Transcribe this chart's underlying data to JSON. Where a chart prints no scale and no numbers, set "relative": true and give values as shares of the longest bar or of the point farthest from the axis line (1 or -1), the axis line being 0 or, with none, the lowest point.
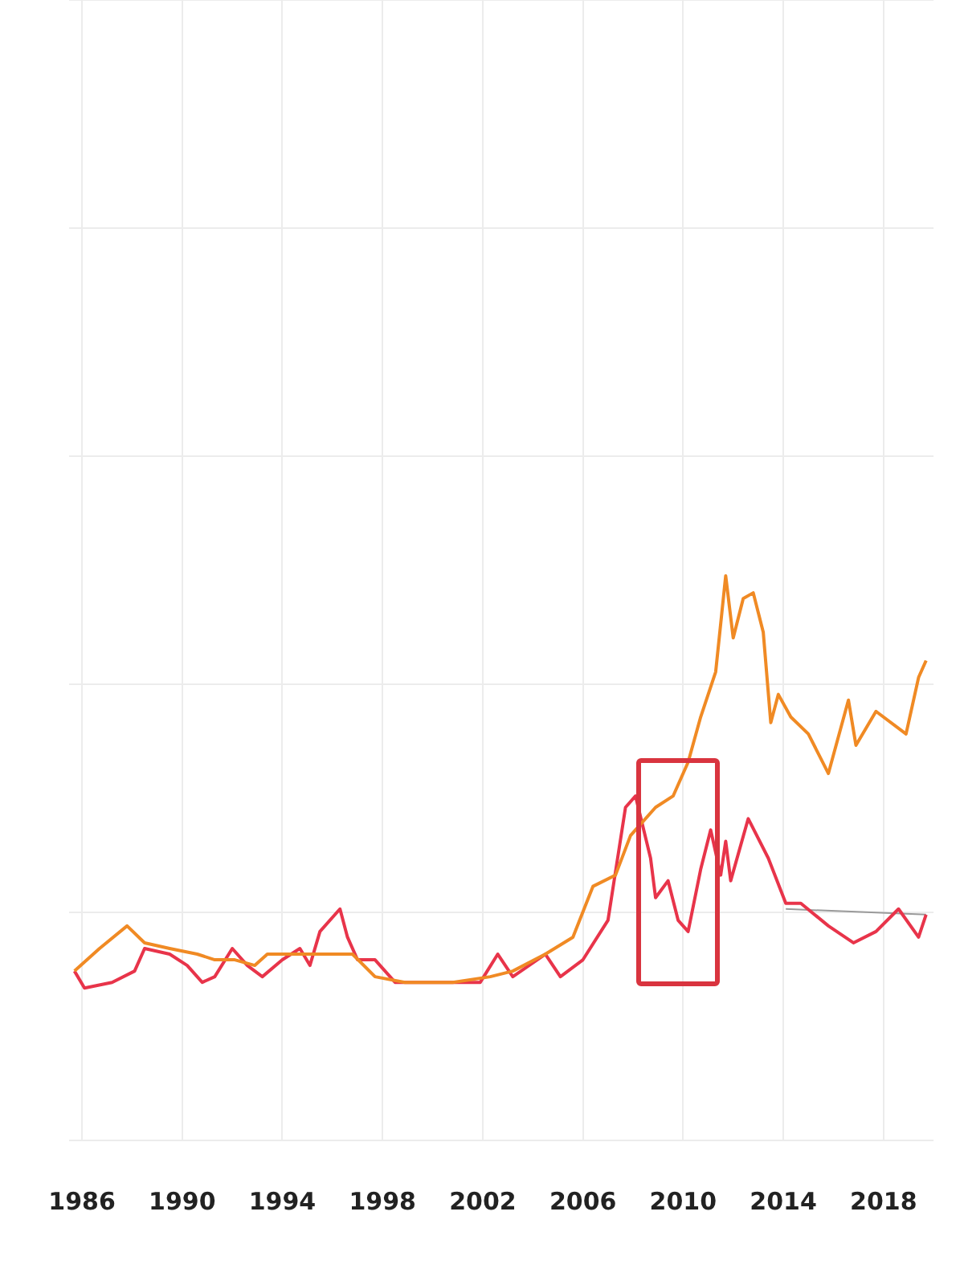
{
  "chart_data": {
    "type": "line",
    "relative": true,
    "grid": true,
    "legend": false,
    "marker": "none",
    "line_style": "solid",
    "xlim": [
      1985.5,
      2020
    ],
    "xticks": [
      1986,
      1990,
      1994,
      1998,
      2002,
      2006,
      2010,
      2014,
      2018
    ],
    "series": [
      {
        "color": "#f08a24",
        "x": [
          1985.7,
          1986.7,
          1987.8,
          1988.5,
          1989.5,
          1990.6,
          1991.3,
          1992.1,
          1992.9,
          1993.4,
          1994.6,
          1996.0,
          1996.8,
          1997.7,
          1998.9,
          2000.8,
          2002.3,
          2003.2,
          2004.5,
          2005.6,
          2006.4,
          2007.3,
          2007.9,
          2008.9,
          2009.6,
          2010.2,
          2010.7,
          2011.3,
          2011.7,
          2012.0,
          2012.4,
          2012.8,
          2013.2,
          2013.5,
          2013.8,
          2014.3,
          2015.0,
          2015.8,
          2016.6,
          2016.9,
          2017.7,
          2018.9,
          2019.4,
          2019.7
        ],
        "values": [
          0.3,
          0.34,
          0.38,
          0.35,
          0.34,
          0.33,
          0.32,
          0.32,
          0.31,
          0.33,
          0.33,
          0.33,
          0.33,
          0.29,
          0.28,
          0.28,
          0.29,
          0.3,
          0.33,
          0.36,
          0.45,
          0.47,
          0.54,
          0.59,
          0.61,
          0.67,
          0.75,
          0.83,
          1.0,
          0.89,
          0.96,
          0.97,
          0.9,
          0.74,
          0.79,
          0.75,
          0.72,
          0.65,
          0.78,
          0.7,
          0.76,
          0.72,
          0.82,
          0.85
        ]
      },
      {
        "color": "#e8344a",
        "x": [
          1985.7,
          1986.1,
          1987.2,
          1988.1,
          1988.5,
          1989.5,
          1990.2,
          1990.8,
          1991.3,
          1992.0,
          1992.6,
          1993.2,
          1994.0,
          1994.7,
          1995.1,
          1995.5,
          1996.3,
          1996.6,
          1997.0,
          1997.7,
          1998.5,
          1999.3,
          2000.8,
          2001.9,
          2002.6,
          2003.2,
          2004.5,
          2005.1,
          2006.0,
          2007.0,
          2007.7,
          2008.1,
          2008.7,
          2008.9,
          2009.4,
          2009.8,
          2010.2,
          2010.7,
          2011.1,
          2011.5,
          2011.7,
          2011.9,
          2012.6,
          2013.4,
          2014.1,
          2014.7,
          2015.8,
          2016.8,
          2017.7,
          2018.6,
          2019.4,
          2019.7
        ],
        "values": [
          0.3,
          0.27,
          0.28,
          0.3,
          0.34,
          0.33,
          0.31,
          0.28,
          0.29,
          0.34,
          0.31,
          0.29,
          0.32,
          0.34,
          0.31,
          0.37,
          0.41,
          0.36,
          0.32,
          0.32,
          0.28,
          0.28,
          0.28,
          0.28,
          0.33,
          0.29,
          0.33,
          0.29,
          0.32,
          0.39,
          0.59,
          0.61,
          0.5,
          0.43,
          0.46,
          0.39,
          0.37,
          0.48,
          0.55,
          0.47,
          0.53,
          0.46,
          0.57,
          0.5,
          0.42,
          0.42,
          0.38,
          0.35,
          0.37,
          0.41,
          0.36,
          0.4
        ]
      },
      {
        "color": "#9a9a9a",
        "x": [
          2014.1,
          2019.7
        ],
        "values": [
          0.41,
          0.4
        ]
      }
    ]
  }
}
